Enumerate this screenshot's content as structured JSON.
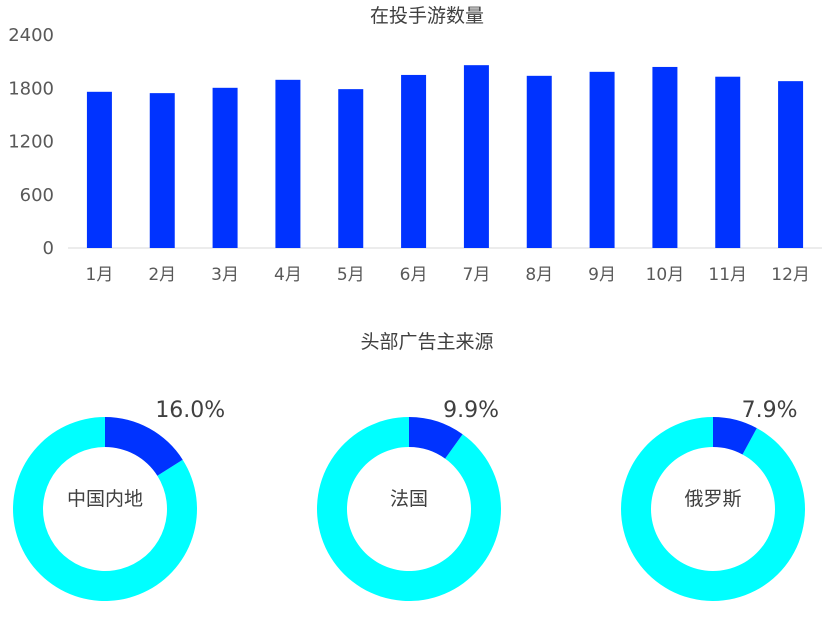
{
  "chart_data": [
    {
      "type": "bar",
      "title": "在投手游数量",
      "categories": [
        "1月",
        "2月",
        "3月",
        "4月",
        "5月",
        "6月",
        "7月",
        "8月",
        "9月",
        "10月",
        "11月",
        "12月"
      ],
      "values": [
        1760,
        1745,
        1805,
        1895,
        1790,
        1950,
        2060,
        1940,
        1985,
        2040,
        1930,
        1880
      ],
      "ylim": [
        0,
        2400
      ],
      "yticks": [
        "0",
        "600",
        "1200",
        "1800",
        "2400"
      ],
      "color": "#0033ff",
      "grid": false,
      "legend": "none"
    },
    {
      "type": "pie",
      "title": "头部广告主来源",
      "style": "donut",
      "color_share": "#0033ff",
      "color_rest": "#00ffff",
      "items": [
        {
          "label": "中国内地",
          "value": 16.0,
          "value_label": "16.0%"
        },
        {
          "label": "法国",
          "value": 9.9,
          "value_label": "9.9%"
        },
        {
          "label": "俄罗斯",
          "value": 7.9,
          "value_label": "7.9%"
        }
      ]
    }
  ]
}
